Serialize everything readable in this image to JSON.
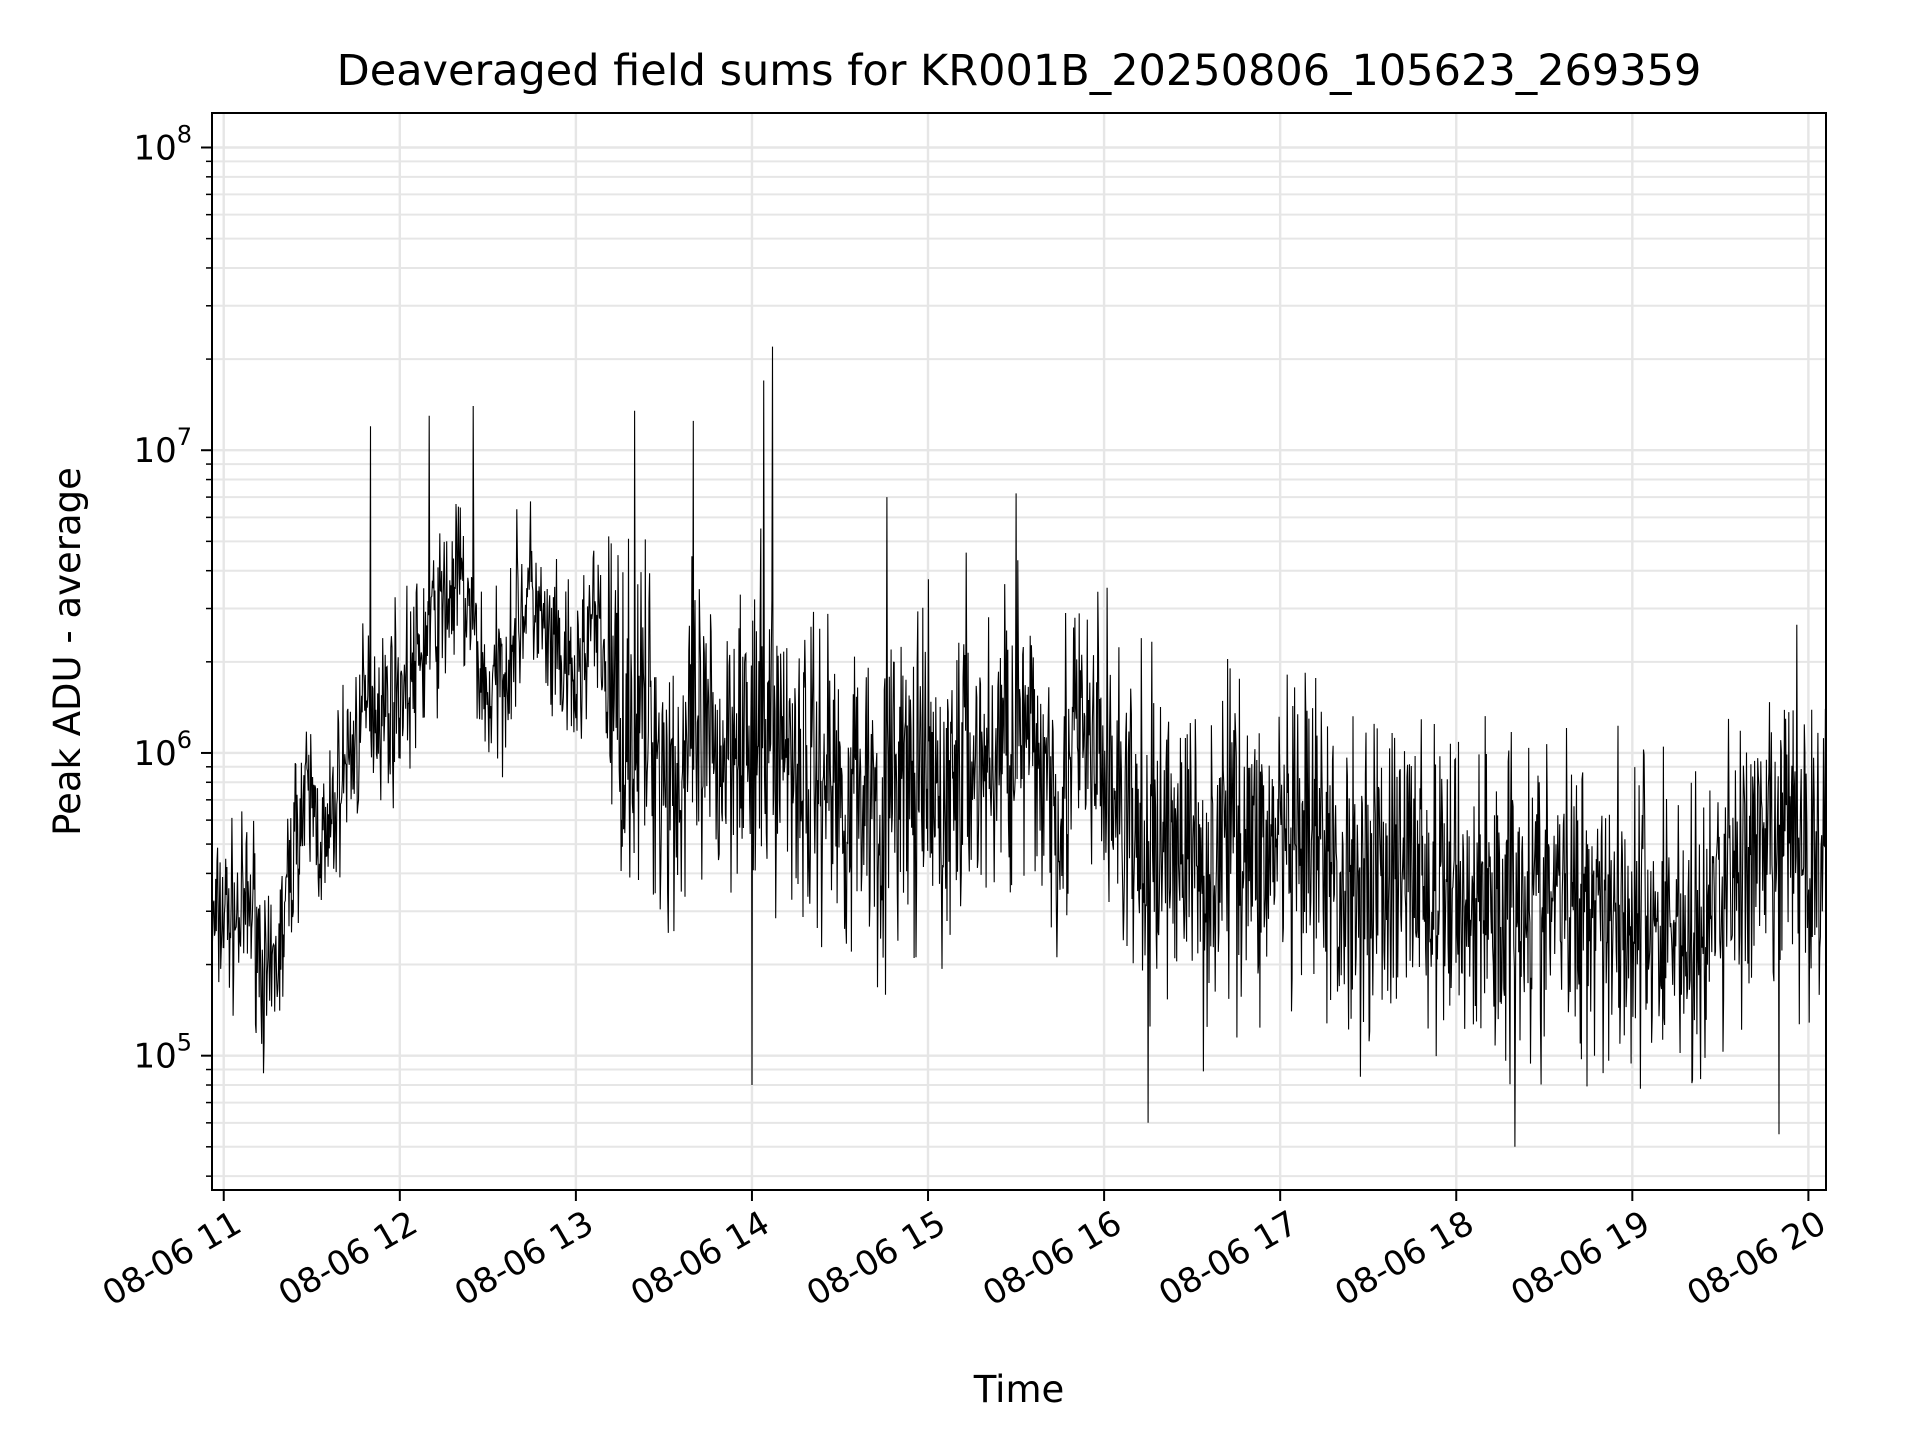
{
  "chart_data": {
    "type": "line",
    "title": "Deaveraged field sums for KR001B_20250806_105623_269359",
    "xlabel": "Time",
    "ylabel": "Peak ADU - average",
    "yscale": "log",
    "ylim": [
      36000,
      130000000
    ],
    "xlim": [
      "2025-08-06 10:56",
      "2025-08-06 20:06"
    ],
    "grid": true,
    "line_color": "#000000",
    "grid_color": "#e6e6e6",
    "x_ticks": [
      {
        "time": "2025-08-06 11:00",
        "label": "08-06 11"
      },
      {
        "time": "2025-08-06 12:00",
        "label": "08-06 12"
      },
      {
        "time": "2025-08-06 13:00",
        "label": "08-06 13"
      },
      {
        "time": "2025-08-06 14:00",
        "label": "08-06 14"
      },
      {
        "time": "2025-08-06 15:00",
        "label": "08-06 15"
      },
      {
        "time": "2025-08-06 16:00",
        "label": "08-06 16"
      },
      {
        "time": "2025-08-06 17:00",
        "label": "08-06 17"
      },
      {
        "time": "2025-08-06 18:00",
        "label": "08-06 18"
      },
      {
        "time": "2025-08-06 19:00",
        "label": "08-06 19"
      },
      {
        "time": "2025-08-06 20:00",
        "label": "08-06 20"
      }
    ],
    "y_ticks": [
      {
        "value": 100000,
        "base": "10",
        "exp": "5"
      },
      {
        "value": 1000000,
        "base": "10",
        "exp": "6"
      },
      {
        "value": 10000000,
        "base": "10",
        "exp": "7"
      },
      {
        "value": 100000000,
        "base": "10",
        "exp": "8"
      }
    ],
    "series": [
      {
        "x": [
          "2025-08-06 10:56",
          "2025-08-06 11:00",
          "2025-08-06 11:05",
          "2025-08-06 11:10",
          "2025-08-06 11:15",
          "2025-08-06 11:20",
          "2025-08-06 11:25",
          "2025-08-06 11:30",
          "2025-08-06 11:35",
          "2025-08-06 11:40",
          "2025-08-06 11:45",
          "2025-08-06 11:50",
          "2025-08-06 11:55",
          "2025-08-06 12:00",
          "2025-08-06 12:05",
          "2025-08-06 12:10",
          "2025-08-06 12:15",
          "2025-08-06 12:20",
          "2025-08-06 12:25",
          "2025-08-06 12:30",
          "2025-08-06 12:35",
          "2025-08-06 12:40",
          "2025-08-06 12:45",
          "2025-08-06 12:50",
          "2025-08-06 12:55",
          "2025-08-06 13:00",
          "2025-08-06 13:05",
          "2025-08-06 13:10",
          "2025-08-06 13:15",
          "2025-08-06 13:20",
          "2025-08-06 13:25",
          "2025-08-06 13:30",
          "2025-08-06 13:35",
          "2025-08-06 13:40",
          "2025-08-06 13:45",
          "2025-08-06 13:50",
          "2025-08-06 13:55",
          "2025-08-06 14:00",
          "2025-08-06 14:05",
          "2025-08-06 14:10",
          "2025-08-06 14:15",
          "2025-08-06 14:20",
          "2025-08-06 14:25",
          "2025-08-06 14:30",
          "2025-08-06 14:35",
          "2025-08-06 14:40",
          "2025-08-06 14:45",
          "2025-08-06 14:50",
          "2025-08-06 14:55",
          "2025-08-06 15:00",
          "2025-08-06 15:05",
          "2025-08-06 15:10",
          "2025-08-06 15:15",
          "2025-08-06 15:20",
          "2025-08-06 15:25",
          "2025-08-06 15:30",
          "2025-08-06 15:35",
          "2025-08-06 15:40",
          "2025-08-06 15:45",
          "2025-08-06 15:50",
          "2025-08-06 15:55",
          "2025-08-06 16:00",
          "2025-08-06 16:05",
          "2025-08-06 16:10",
          "2025-08-06 16:15",
          "2025-08-06 16:20",
          "2025-08-06 16:25",
          "2025-08-06 16:30",
          "2025-08-06 16:35",
          "2025-08-06 16:40",
          "2025-08-06 16:45",
          "2025-08-06 16:50",
          "2025-08-06 16:55",
          "2025-08-06 17:00",
          "2025-08-06 17:05",
          "2025-08-06 17:10",
          "2025-08-06 17:15",
          "2025-08-06 17:20",
          "2025-08-06 17:25",
          "2025-08-06 17:30",
          "2025-08-06 17:35",
          "2025-08-06 17:40",
          "2025-08-06 17:45",
          "2025-08-06 17:50",
          "2025-08-06 17:55",
          "2025-08-06 18:00",
          "2025-08-06 18:05",
          "2025-08-06 18:10",
          "2025-08-06 18:15",
          "2025-08-06 18:20",
          "2025-08-06 18:25",
          "2025-08-06 18:30",
          "2025-08-06 18:35",
          "2025-08-06 18:40",
          "2025-08-06 18:45",
          "2025-08-06 18:50",
          "2025-08-06 18:55",
          "2025-08-06 19:00",
          "2025-08-06 19:05",
          "2025-08-06 19:10",
          "2025-08-06 19:15",
          "2025-08-06 19:20",
          "2025-08-06 19:25",
          "2025-08-06 19:30",
          "2025-08-06 19:35",
          "2025-08-06 19:40",
          "2025-08-06 19:45",
          "2025-08-06 19:50",
          "2025-08-06 19:55",
          "2025-08-06 20:00",
          "2025-08-06 20:06"
        ],
        "y": [
          250000,
          300000,
          280000,
          320000,
          150000,
          250000,
          600000,
          700000,
          450000,
          850000,
          1100000,
          1500000,
          1400000,
          1600000,
          1800000,
          2500000,
          3000000,
          3800000,
          2500000,
          1500000,
          1800000,
          2800000,
          3500000,
          2200000,
          1900000,
          1600000,
          2800000,
          2000000,
          1400000,
          1200000,
          1300000,
          900000,
          800000,
          1000000,
          950000,
          1000000,
          1500000,
          900000,
          1200000,
          1100000,
          1000000,
          800000,
          950000,
          700000,
          750000,
          800000,
          600000,
          900000,
          700000,
          800000,
          600000,
          900000,
          1000000,
          850000,
          1100000,
          1300000,
          900000,
          1000000,
          700000,
          1100000,
          1000000,
          900000,
          700000,
          500000,
          450000,
          500000,
          550000,
          450000,
          400000,
          500000,
          600000,
          500000,
          450000,
          550000,
          400000,
          500000,
          450000,
          350000,
          400000,
          400000,
          450000,
          350000,
          500000,
          350000,
          300000,
          400000,
          300000,
          350000,
          300000,
          400000,
          350000,
          300000,
          350000,
          300000,
          350000,
          350000,
          300000,
          280000,
          300000,
          250000,
          300000,
          220000,
          250000,
          350000,
          450000,
          400000,
          400000,
          500000,
          600000,
          450000,
          500000
        ],
        "spikes": [
          {
            "x": "2025-08-06 11:50",
            "y": 12000000
          },
          {
            "x": "2025-08-06 12:10",
            "y": 13000000
          },
          {
            "x": "2025-08-06 12:25",
            "y": 14000000
          },
          {
            "x": "2025-08-06 13:20",
            "y": 13500000
          },
          {
            "x": "2025-08-06 13:40",
            "y": 12500000
          },
          {
            "x": "2025-08-06 14:04",
            "y": 17000000
          },
          {
            "x": "2025-08-06 14:07",
            "y": 22000000
          },
          {
            "x": "2025-08-06 14:46",
            "y": 7000000
          },
          {
            "x": "2025-08-06 15:30",
            "y": 7200000
          },
          {
            "x": "2025-08-06 14:00",
            "y": 80000
          },
          {
            "x": "2025-08-06 16:15",
            "y": 60000
          },
          {
            "x": "2025-08-06 18:20",
            "y": 50000
          },
          {
            "x": "2025-08-06 19:50",
            "y": 55000
          }
        ]
      }
    ]
  }
}
